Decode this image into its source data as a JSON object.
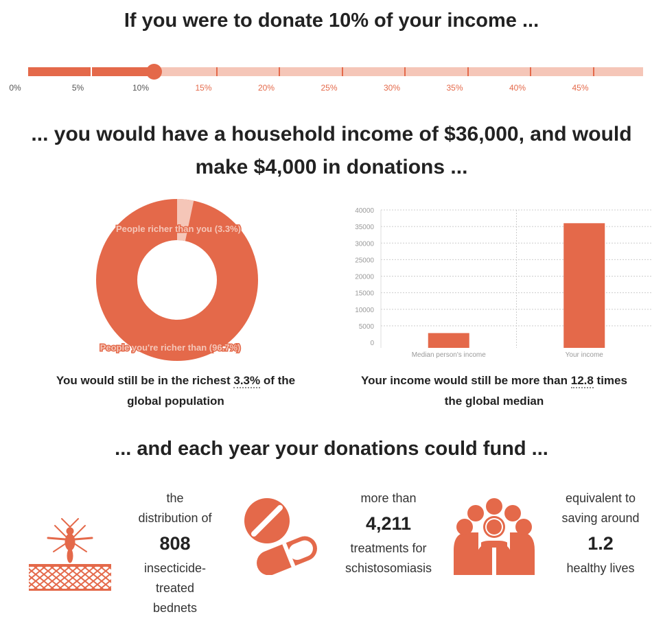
{
  "headings": {
    "intro": "If you were to donate 10% of your income ...",
    "income_line1": "... you would have a household income of $36,000, and would",
    "income_line2": "make $4,000 in donations ...",
    "fund": "... and each year your donations could fund ..."
  },
  "slider": {
    "selected_percent": 10,
    "max_percent": 49,
    "ticks": [
      "0%",
      "5%",
      "10%",
      "15%",
      "20%",
      "25%",
      "30%",
      "35%",
      "40%",
      "45%"
    ]
  },
  "donut": {
    "label_richer": "People richer than you (3.3%)",
    "label_poorer": "People you're richer than (96.7%)",
    "richer_fraction": 0.033
  },
  "chart_data": {
    "type": "bar",
    "categories": [
      "Median person's income",
      "Your income"
    ],
    "values": [
      2812,
      36000
    ],
    "ylim": [
      0,
      40000
    ],
    "yticks": [
      "40000",
      "35000",
      "30000",
      "25000",
      "20000",
      "15000",
      "10000",
      "5000",
      "0"
    ],
    "grid": true
  },
  "captions": {
    "left_prefix": "You would still be in the richest ",
    "left_value": "3.3%",
    "left_suffix": " of the",
    "left_line2": "global population",
    "right_prefix": "Your income would still be more than ",
    "right_value": "12.8",
    "right_suffix": " times",
    "right_line2": "the global median"
  },
  "impacts": {
    "bednets": {
      "line1": "the",
      "line2": "distribution of",
      "number": "808",
      "line3": "insecticide-",
      "line4": "treated",
      "line5": "bednets",
      "icon": "mosquito-net-icon"
    },
    "treatments": {
      "line1": "more than",
      "number": "4,211",
      "line2": "treatments for",
      "line3": "schistosomiasis",
      "icon": "pills-icon"
    },
    "lives": {
      "line1": "equivalent to",
      "line2": "saving around",
      "number": "1.2",
      "line3": "healthy lives",
      "icon": "people-icon"
    }
  },
  "colors": {
    "accent": "#e4694a",
    "accent_light": "#f5c6b8"
  }
}
